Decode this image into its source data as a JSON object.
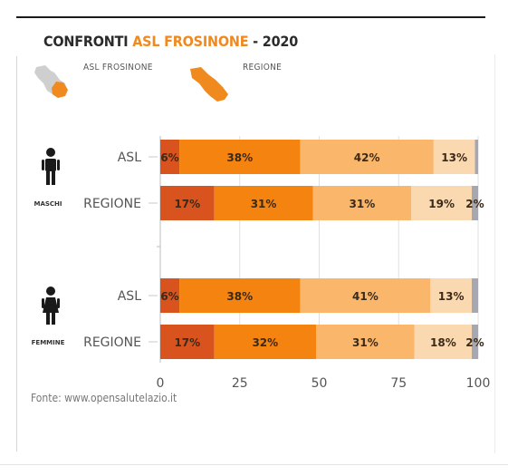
{
  "title": {
    "prefix": "CONFRONTI ",
    "highlight": "ASL FROSINONE",
    "suffix": " - 2020"
  },
  "legend": {
    "asl_label": "ASL FROSINONE",
    "region_label": "REGIONE"
  },
  "source": "Fonte: www.opensalutelazio.it",
  "colors": {
    "seg1": "#d9531e",
    "seg2": "#f5830f",
    "seg3": "#fab76c",
    "seg4": "#fbd9b0",
    "seg5": "#a7a7b2",
    "title_highlight": "#f08a1e",
    "map_asl_base": "#cfcfcf",
    "map_asl_highlight": "#f08a1e",
    "map_region": "#f08a1e"
  },
  "chart_data": {
    "type": "bar",
    "orientation": "horizontal",
    "stacked": true,
    "xlim": [
      0,
      100
    ],
    "xticks": [
      0,
      25,
      50,
      75,
      100
    ],
    "grid": true,
    "groups": [
      {
        "label": "MASCHI",
        "icon": "male-person-icon",
        "bars": [
          {
            "label": "ASL",
            "values": [
              6,
              38,
              42,
              13,
              1
            ],
            "labels": [
              "6%",
              "38%",
              "42%",
              "13%",
              ""
            ]
          },
          {
            "label": "REGIONE",
            "values": [
              17,
              31,
              31,
              19,
              2
            ],
            "labels": [
              "17%",
              "31%",
              "31%",
              "19%",
              "2%"
            ]
          }
        ]
      },
      {
        "label": "FEMMINE",
        "icon": "female-person-icon",
        "bars": [
          {
            "label": "ASL",
            "values": [
              6,
              38,
              41,
              13,
              2
            ],
            "labels": [
              "6%",
              "38%",
              "41%",
              "13%",
              ""
            ]
          },
          {
            "label": "REGIONE",
            "values": [
              17,
              32,
              31,
              18,
              2
            ],
            "labels": [
              "17%",
              "32%",
              "31%",
              "18%",
              "2%"
            ]
          }
        ]
      }
    ]
  }
}
